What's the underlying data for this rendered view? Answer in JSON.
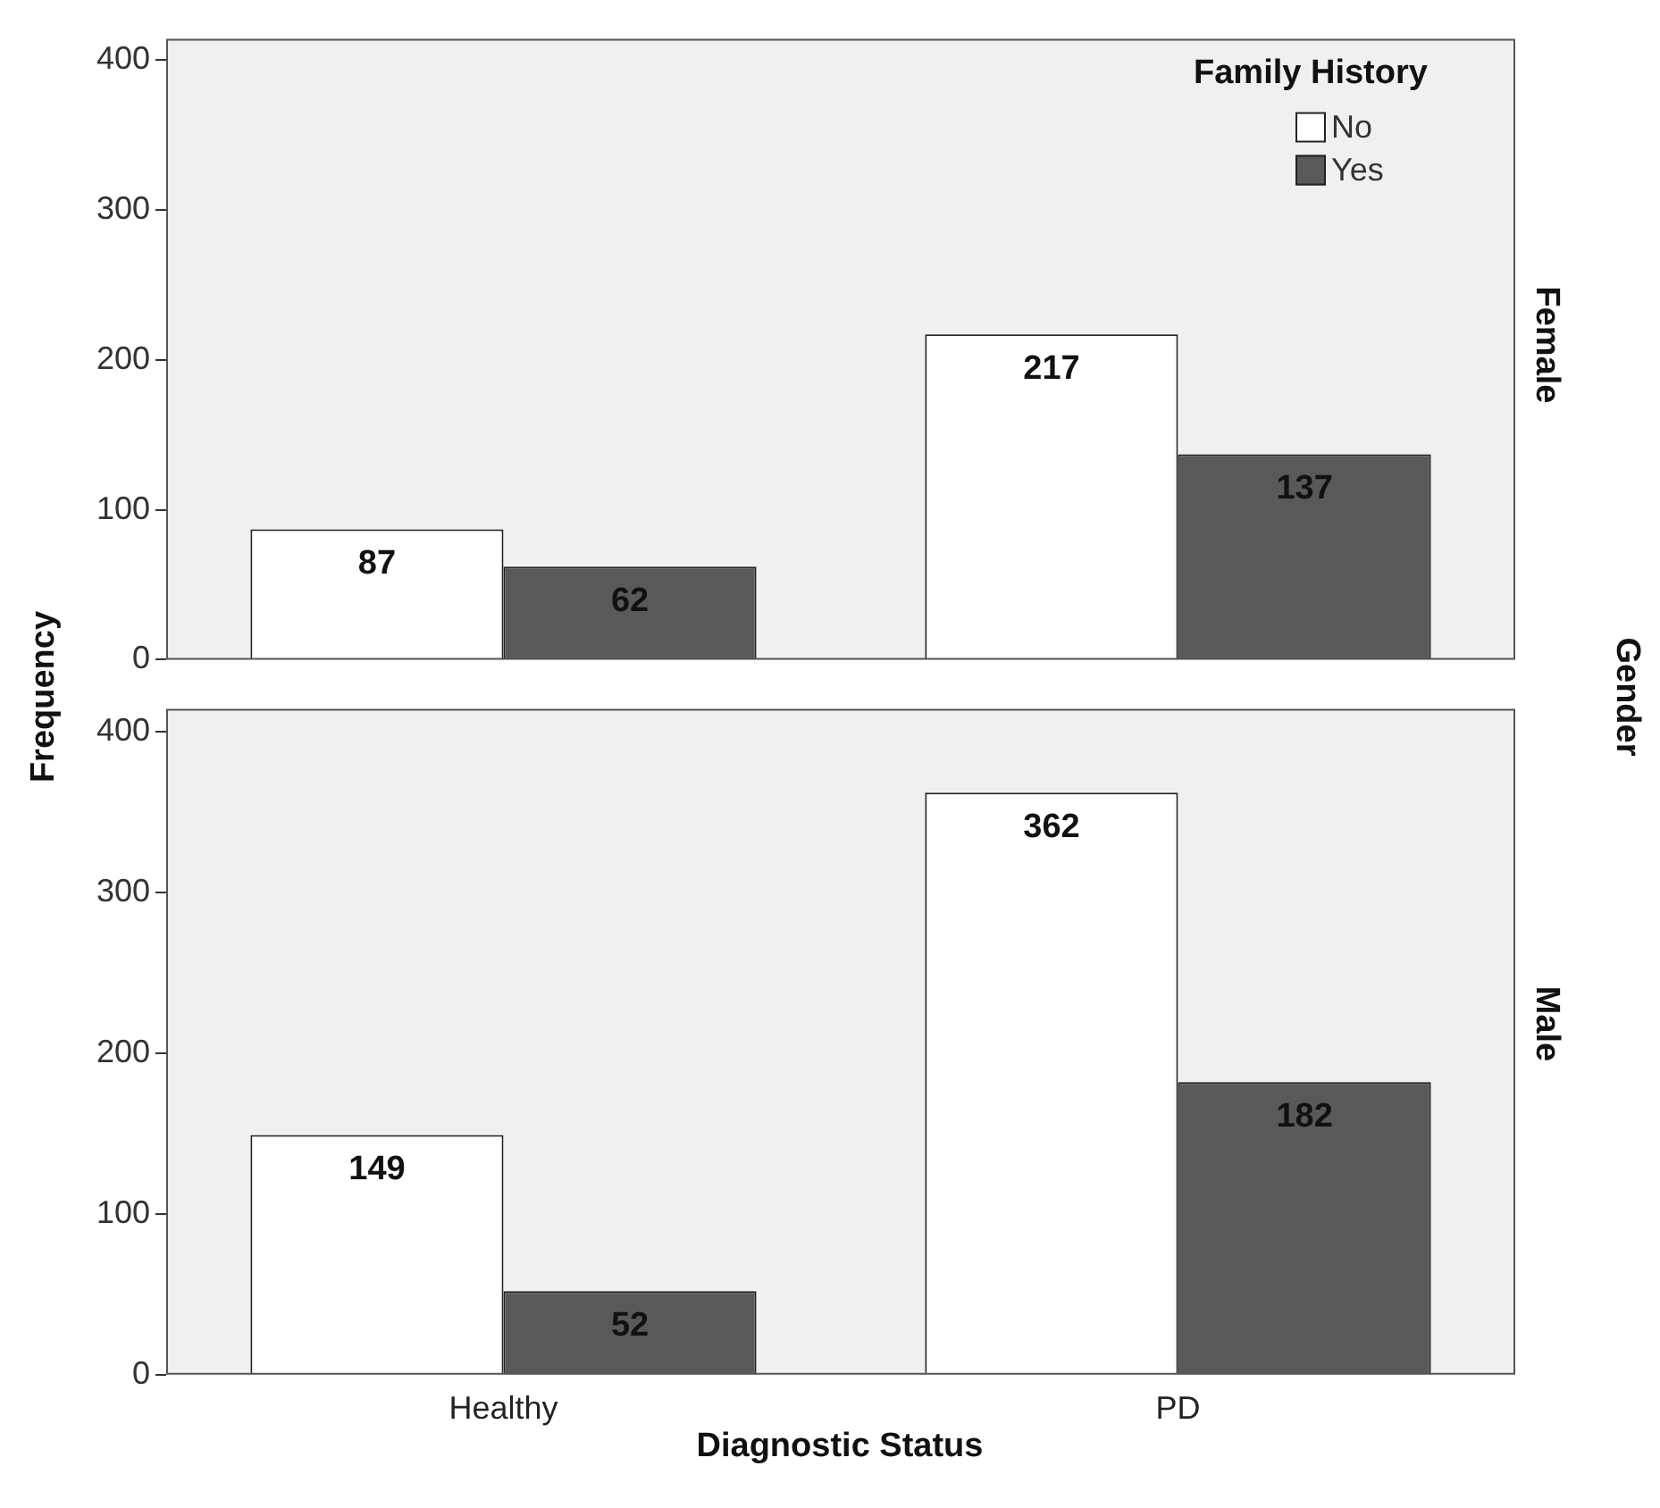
{
  "chart_data": [
    {
      "type": "bar",
      "categories": [
        null,
        null
      ],
      "series": [
        {
          "name": "No",
          "color": "#ffffff",
          "values": [
            87,
            217
          ]
        },
        {
          "name": "Yes",
          "color": "#595959",
          "values": [
            62,
            137
          ]
        }
      ],
      "ylabel": "Frequency",
      "legend_title": "Family History",
      "annotations": [
        "Female",
        "Gender"
      ],
      "ylim": [
        0,
        414
      ],
      "yticks": [
        0,
        100,
        200,
        300,
        400
      ],
      "grid": false,
      "legend": "top right",
      "data_labels": true,
      "tick_labels": "y"
    },
    {
      "type": "bar",
      "categories": [
        "Healthy",
        "PD"
      ],
      "series": [
        {
          "color": "#ffffff",
          "values": [
            149,
            362
          ]
        },
        {
          "color": "#595959",
          "values": [
            52,
            182
          ]
        }
      ],
      "xlabel": "Diagnostic Status",
      "annotations": [
        "Male"
      ],
      "ylim": [
        0,
        414
      ],
      "yticks": [
        0,
        100,
        200,
        300,
        400
      ],
      "grid": false,
      "data_labels": true
    }
  ]
}
